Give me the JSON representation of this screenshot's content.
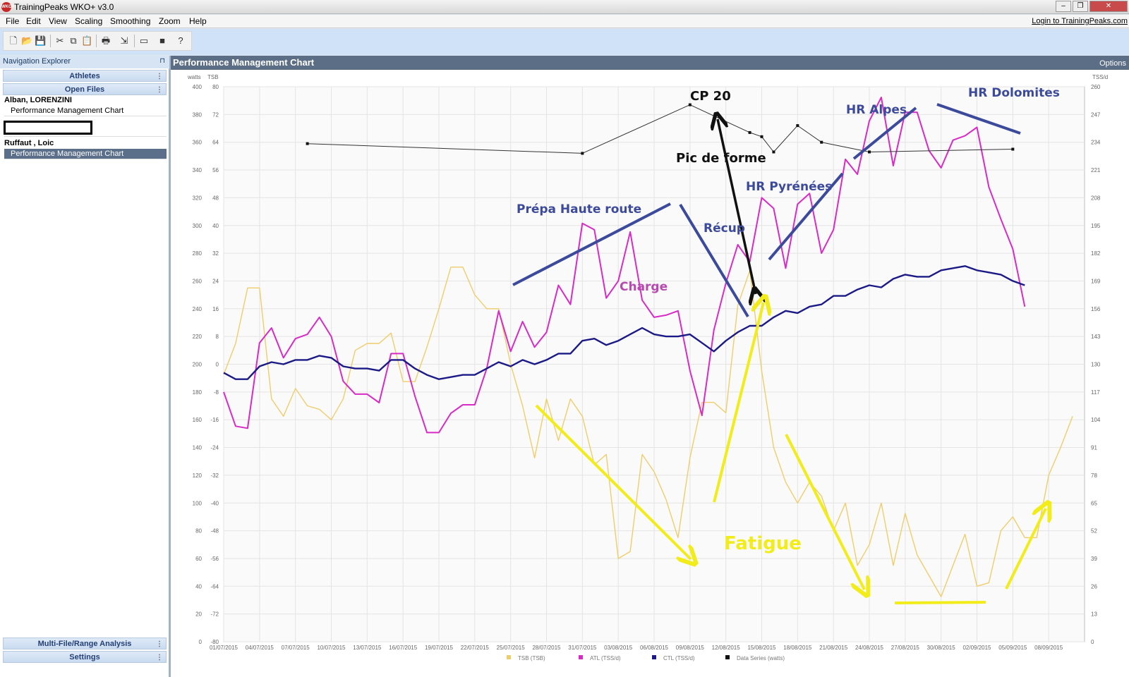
{
  "window": {
    "title": "TrainingPeaks WKO+ v3.0",
    "app_icon": "WKO+"
  },
  "window_buttons": {
    "minimize": "–",
    "restore": "❐",
    "close": "✕"
  },
  "menu": {
    "items": [
      "File",
      "Edit",
      "View",
      "Scaling",
      "Smoothing",
      "Zoom",
      "Help"
    ],
    "login": "Login to TrainingPeaks.com"
  },
  "toolbar": {
    "icons": [
      "new-file-icon",
      "open-folder-icon",
      "save-icon",
      "cut-icon",
      "copy-icon",
      "paste-icon",
      "print-icon",
      "import-icon",
      "device-icon",
      "stop-icon",
      "help-icon"
    ]
  },
  "nav": {
    "header": "Navigation Explorer",
    "pin": "⊓",
    "athletes_label": "Athletes",
    "open_files_label": "Open Files",
    "athlete1": {
      "name": "Alban, LORENZINI",
      "file": "Performance Management Chart"
    },
    "athlete2": {
      "name": "Ruffaut , Loic",
      "file": "Performance Management Chart"
    },
    "multi_file_label": "Multi-File/Range Analysis",
    "settings_label": "Settings"
  },
  "chart_panel": {
    "title": "Performance Management Chart",
    "options": "Options"
  },
  "annotations": {
    "cp20": "CP 20",
    "hr_alpes": "HR Alpes",
    "hr_dolomites": "HR Dolomites",
    "pic_de_forme": "Pic de forme",
    "hr_pyrenees": "HR Pyrénées",
    "prepa": "Prépa Haute route",
    "recup": "Récup",
    "charge": "Charge",
    "fatigue": "Fatigue"
  },
  "colors": {
    "tsb": "#f0cd6b",
    "atl": "#d82bc6",
    "ctl": "#1b1a86",
    "data": "#333333",
    "annotation_blue": "#3c4a9c",
    "annotation_yellow": "#f2ec1a"
  },
  "chart_data": {
    "type": "line",
    "axis_units": {
      "left_watts": "watts",
      "left_tsb": "TSB",
      "right": "TSS/d"
    },
    "watts_ticks": [
      0,
      20,
      40,
      60,
      80,
      100,
      120,
      140,
      160,
      180,
      200,
      220,
      240,
      260,
      280,
      300,
      320,
      340,
      360,
      380,
      400
    ],
    "tsb_ticks": [
      -80,
      -72,
      -64,
      -56,
      -48,
      -40,
      -32,
      -24,
      -16,
      -8,
      0,
      8,
      16,
      24,
      32,
      40,
      48,
      56,
      64,
      72,
      80
    ],
    "tss_ticks": [
      0,
      13,
      26,
      39,
      52,
      65,
      78,
      91,
      104,
      117,
      130,
      143,
      156,
      169,
      182,
      195,
      208,
      221,
      234,
      247,
      260
    ],
    "x_ticks": [
      "01/07/2015",
      "04/07/2015",
      "07/07/2015",
      "10/07/2015",
      "13/07/2015",
      "16/07/2015",
      "19/07/2015",
      "22/07/2015",
      "25/07/2015",
      "28/07/2015",
      "31/07/2015",
      "03/08/2015",
      "06/08/2015",
      "09/08/2015",
      "12/08/2015",
      "15/08/2015",
      "18/08/2015",
      "21/08/2015",
      "24/08/2015",
      "27/08/2015",
      "30/08/2015",
      "02/09/2015",
      "05/09/2015",
      "08/09/2015"
    ],
    "x_range": [
      "01/07/2015",
      "11/09/2015"
    ],
    "legend": [
      "TSB (TSB)",
      "ATL (TSS/d)",
      "CTL (TSS/d)",
      "Data Series (watts)"
    ],
    "series": [
      {
        "name": "TSB (TSB)",
        "axis": "tsb",
        "start": "01/07/2015",
        "values": [
          -3,
          6,
          22,
          22,
          -10,
          -15,
          -7,
          -12,
          -13,
          -16,
          -10,
          4,
          6,
          6,
          9,
          -5,
          -5,
          5,
          16,
          28,
          28,
          20,
          16,
          16,
          0,
          -12,
          -27,
          -10,
          -22,
          -10,
          -15,
          -29,
          -26,
          -56,
          -54,
          -26,
          -31,
          -39,
          -50,
          -27,
          -11,
          -11,
          -14,
          17,
          27,
          -2,
          -24,
          -34,
          -40,
          -34,
          -38,
          -48,
          -40,
          -58,
          -52,
          -40,
          -58,
          -43,
          -55,
          -61,
          -67,
          -58,
          -49,
          -64,
          -63,
          -48,
          -44,
          -50,
          -50,
          -32,
          -24,
          -15
        ]
      },
      {
        "name": "ATL (TSS/d)",
        "axis": "tss",
        "start": "01/07/2015",
        "values": [
          117,
          101,
          100,
          140,
          147,
          133,
          142,
          144,
          152,
          143,
          122,
          116,
          116,
          112,
          135,
          135,
          115,
          98,
          98,
          107,
          111,
          111,
          128,
          155,
          136,
          150,
          138,
          145,
          167,
          158,
          196,
          193,
          161,
          169,
          192,
          160,
          152,
          153,
          155,
          127,
          106,
          146,
          168,
          186,
          178,
          208,
          203,
          175,
          205,
          210,
          182,
          193,
          226,
          219,
          244,
          255,
          223,
          248,
          248,
          230,
          222,
          235,
          237,
          241,
          213,
          198,
          184,
          157
        ]
      },
      {
        "name": "CTL (TSS/d)",
        "axis": "tss",
        "start": "01/07/2015",
        "values": [
          126,
          123,
          123,
          129,
          131,
          130,
          132,
          132,
          134,
          133,
          129,
          128,
          128,
          127,
          132,
          132,
          128,
          125,
          123,
          124,
          125,
          125,
          128,
          131,
          129,
          132,
          130,
          132,
          135,
          135,
          141,
          142,
          139,
          141,
          144,
          147,
          144,
          143,
          143,
          144,
          140,
          136,
          141,
          145,
          148,
          148,
          152,
          155,
          154,
          157,
          158,
          162,
          162,
          165,
          167,
          166,
          170,
          172,
          171,
          171,
          174,
          175,
          176,
          174,
          173,
          172,
          169,
          167
        ]
      },
      {
        "name": "Data Series (watts)",
        "axis": "watts",
        "points": [
          [
            "08/07/2015",
            359
          ],
          [
            "31/07/2015",
            352
          ],
          [
            "09/08/2015",
            387
          ],
          [
            "14/08/2015",
            367
          ],
          [
            "15/08/2015",
            364
          ],
          [
            "16/08/2015",
            353
          ],
          [
            "18/08/2015",
            372
          ],
          [
            "20/08/2015",
            360
          ],
          [
            "24/08/2015",
            353
          ],
          [
            "05/09/2015",
            355
          ]
        ]
      }
    ]
  }
}
